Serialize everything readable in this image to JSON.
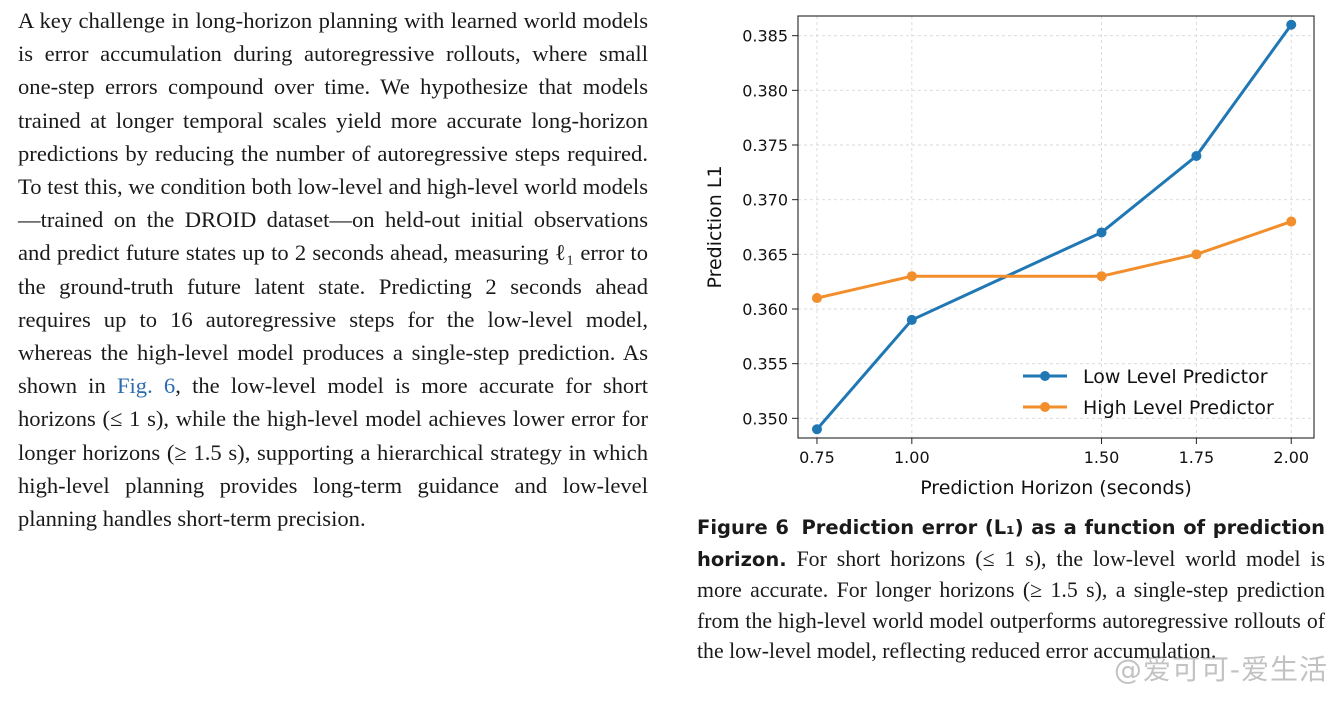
{
  "body_text": {
    "paragraph_before_link": "A key challenge in long-horizon planning with learned world models is error accumulation during autoregressive rollouts, where small one-step errors compound over time. We hypothesize that models trained at longer temporal scales yield more accurate long-horizon predictions by reducing the number of autoregressive steps required. To test this, we condition both low-level and high-level world models—trained on the DROID dataset—on held-out initial observations and predict future states up to 2 seconds ahead, measuring ℓ₁ error to the ground-truth future latent state. Predicting 2 seconds ahead requires up to 16 autoregressive steps for the low-level model, whereas the high-level model produces a single-step prediction. As shown in ",
    "figure_link": "Fig. 6",
    "paragraph_after_link": ", the low-level model is more accurate for short horizons (≤ 1 s), while the high-level model achieves lower error for longer horizons (≥ 1.5 s), supporting a hierarchical strategy in which high-level planning provides long-term guidance and low-level planning handles short-term precision."
  },
  "figure": {
    "label": "Figure 6",
    "title": "Prediction error (L₁) as a function of prediction horizon.",
    "caption": "For short horizons (≤ 1 s), the low-level world model is more accurate. For longer horizons (≥ 1.5 s), a single-step prediction from the high-level world model outperforms autoregressive rollouts of the low-level model, reflecting reduced error accumulation."
  },
  "watermark": "@爱可可-爱生活",
  "chart_data": {
    "type": "line",
    "title": "",
    "xlabel": "Prediction Horizon (seconds)",
    "ylabel": "Prediction L1",
    "x": [
      0.75,
      1.0,
      1.5,
      1.75,
      2.0
    ],
    "xticks": [
      "0.75",
      "1.00",
      "1.50",
      "1.75",
      "2.00"
    ],
    "yticks": [
      "0.350",
      "0.355",
      "0.360",
      "0.365",
      "0.370",
      "0.375",
      "0.380",
      "0.385"
    ],
    "xlim": [
      0.7,
      2.06
    ],
    "ylim": [
      0.3482,
      0.3868
    ],
    "grid": true,
    "legend_position": "lower-right",
    "series": [
      {
        "name": "Low Level Predictor",
        "color": "#1f77b4",
        "values": [
          0.349,
          0.359,
          0.367,
          0.374,
          0.386
        ]
      },
      {
        "name": "High Level Predictor",
        "color": "#f28e2b",
        "values": [
          0.361,
          0.363,
          0.363,
          0.365,
          0.368
        ]
      }
    ]
  }
}
